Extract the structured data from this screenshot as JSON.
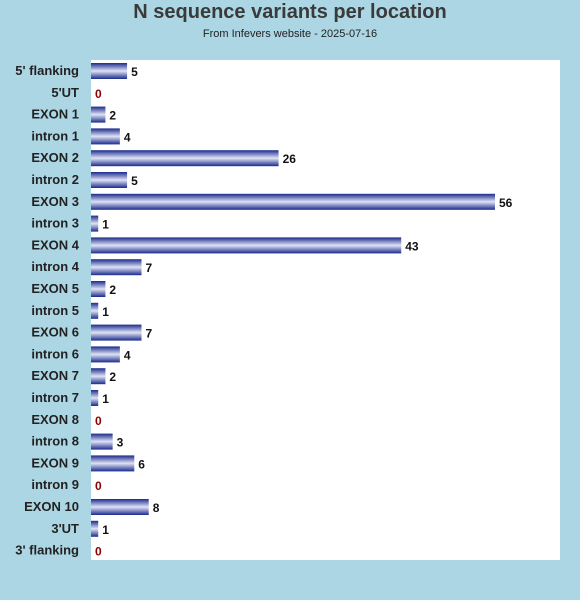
{
  "chart_data": {
    "type": "bar",
    "orientation": "horizontal",
    "title": "N sequence variants per location",
    "subtitle": "From Infevers website - 2025-07-16",
    "categories": [
      "5' flanking",
      "5'UT",
      "EXON 1",
      "intron 1",
      "EXON 2",
      "intron 2",
      "EXON 3",
      "intron 3",
      "EXON 4",
      "intron 4",
      "EXON 5",
      "intron 5",
      "EXON 6",
      "intron 6",
      "EXON 7",
      "intron 7",
      "EXON 8",
      "intron 8",
      "EXON 9",
      "intron 9",
      "EXON 10",
      "3'UT",
      "3' flanking"
    ],
    "values": [
      5,
      0,
      2,
      4,
      26,
      5,
      56,
      1,
      43,
      7,
      2,
      1,
      7,
      4,
      2,
      1,
      0,
      3,
      6,
      0,
      8,
      1,
      0
    ],
    "xlim": [
      0,
      60
    ],
    "grid": false,
    "legend": "none"
  },
  "colors": {
    "page_background": "#acd6e4",
    "plot_background": "#ffffff",
    "bar_dark": "#1a2a8c",
    "bar_light": "#dfe3f5",
    "label_text": "#222222",
    "value_text": "#111111",
    "zero_value_text": "#8b0000"
  }
}
